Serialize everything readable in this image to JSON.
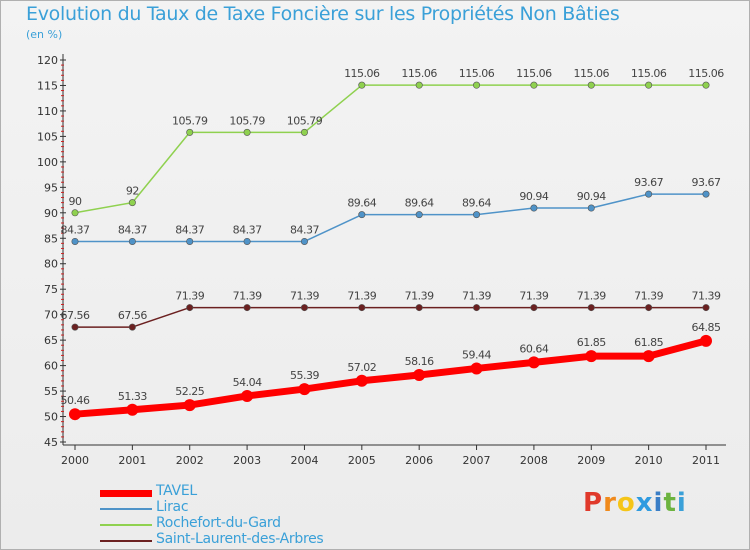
{
  "title": "Evolution du Taux de Taxe Foncière sur les Propriétés Non Bâties",
  "subtitle": "(en %)",
  "logo": {
    "text": "Proxiti",
    "colors": [
      "#e0392b",
      "#f08a1c",
      "#f5c518",
      "#2f9be0",
      "#3a7ec6",
      "#6cb33f",
      "#3aa0d8"
    ]
  },
  "chart_data": {
    "type": "line",
    "x": [
      "2000",
      "2001",
      "2002",
      "2003",
      "2004",
      "2005",
      "2006",
      "2007",
      "2008",
      "2009",
      "2010",
      "2011"
    ],
    "ylim": [
      45,
      120
    ],
    "yticks": [
      "45",
      "50",
      "55",
      "60",
      "65",
      "70",
      "75",
      "80",
      "85",
      "90",
      "95",
      "100",
      "105",
      "110",
      "115",
      "120"
    ],
    "grid": false,
    "legend_position": "bottom-left",
    "series": [
      {
        "name": "TAVEL",
        "color": "#ff0000",
        "values": [
          50.46,
          51.33,
          52.25,
          54.04,
          55.39,
          57.02,
          58.16,
          59.44,
          60.64,
          61.85,
          61.85,
          64.85
        ],
        "labels": [
          "50.46",
          "51.33",
          "52.25",
          "54.04",
          "55.39",
          "57.02",
          "58.16",
          "59.44",
          "60.64",
          "61.85",
          "61.85",
          "64.85"
        ]
      },
      {
        "name": "Lirac",
        "color": "#4f93c8",
        "values": [
          84.37,
          84.37,
          84.37,
          84.37,
          84.37,
          89.64,
          89.64,
          89.64,
          90.94,
          90.94,
          93.67,
          93.67
        ],
        "labels": [
          "84.37",
          "84.37",
          "84.37",
          "84.37",
          "84.37",
          "89.64",
          "89.64",
          "89.64",
          "90.94",
          "90.94",
          "93.67",
          "93.67"
        ]
      },
      {
        "name": "Rochefort-du-Gard",
        "color": "#8fd14f",
        "values": [
          90,
          92,
          105.79,
          105.79,
          105.79,
          115.06,
          115.06,
          115.06,
          115.06,
          115.06,
          115.06,
          115.06
        ],
        "labels": [
          "90",
          "92",
          "105.79",
          "105.79",
          "105.79",
          "115.06",
          "115.06",
          "115.06",
          "115.06",
          "115.06",
          "115.06",
          "115.06"
        ]
      },
      {
        "name": "Saint-Laurent-des-Arbres",
        "color": "#6b2020",
        "values": [
          67.56,
          67.56,
          71.39,
          71.39,
          71.39,
          71.39,
          71.39,
          71.39,
          71.39,
          71.39,
          71.39,
          71.39
        ],
        "labels": [
          "67.56",
          "67.56",
          "71.39",
          "71.39",
          "71.39",
          "71.39",
          "71.39",
          "71.39",
          "71.39",
          "71.39",
          "71.39",
          "71.39"
        ]
      }
    ]
  }
}
